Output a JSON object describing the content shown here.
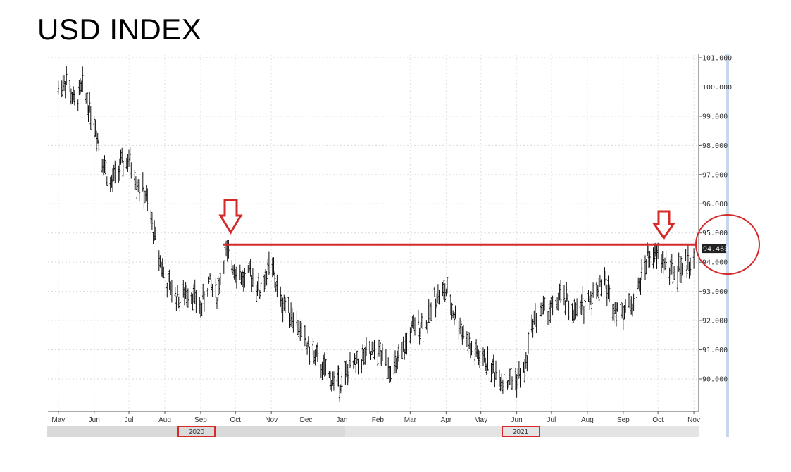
{
  "chart_data": {
    "type": "line",
    "title": "USD INDEX",
    "style": "ohlc-bars",
    "y_ticks": [
      "90.000",
      "91.000",
      "92.000",
      "93.000",
      "94.000",
      "95.000",
      "96.000",
      "97.000",
      "98.000",
      "99.000",
      "100.000",
      "101.000"
    ],
    "ylim": [
      89.0,
      101.2
    ],
    "x_month_labels": [
      "May",
      "Jun",
      "Jul",
      "Aug",
      "Sep",
      "Oct",
      "Nov",
      "Dec",
      "Jan",
      "Feb",
      "Mar",
      "Apr",
      "May",
      "Jun",
      "Jul",
      "Aug",
      "Sep",
      "Oct",
      "Nov"
    ],
    "x_year_labels": [
      "2020",
      "2021"
    ],
    "current_price_label": "94.460",
    "resistance_level": 94.6,
    "series": [
      {
        "x": [
          "2020-05-01",
          "2020-05-08",
          "2020-05-15",
          "2020-05-22",
          "2020-06-01",
          "2020-06-08",
          "2020-06-15",
          "2020-06-22",
          "2020-07-01",
          "2020-07-08",
          "2020-07-15",
          "2020-07-22",
          "2020-08-01",
          "2020-08-08",
          "2020-08-15",
          "2020-08-22",
          "2020-09-01",
          "2020-09-08",
          "2020-09-15",
          "2020-09-22",
          "2020-10-01",
          "2020-10-08",
          "2020-10-15",
          "2020-10-22",
          "2020-11-01",
          "2020-11-08",
          "2020-11-15",
          "2020-11-22",
          "2020-12-01",
          "2020-12-08",
          "2020-12-15",
          "2020-12-22",
          "2021-01-01",
          "2021-01-08",
          "2021-01-15",
          "2021-01-22",
          "2021-02-01",
          "2021-02-08",
          "2021-02-15",
          "2021-02-22",
          "2021-03-01",
          "2021-03-08",
          "2021-03-15",
          "2021-03-22",
          "2021-04-01",
          "2021-04-08",
          "2021-04-15",
          "2021-04-22",
          "2021-05-01",
          "2021-05-08",
          "2021-05-15",
          "2021-05-22",
          "2021-06-01",
          "2021-06-08",
          "2021-06-15",
          "2021-06-22",
          "2021-07-01",
          "2021-07-08",
          "2021-07-15",
          "2021-07-22",
          "2021-08-01",
          "2021-08-08",
          "2021-08-15",
          "2021-08-22",
          "2021-09-01",
          "2021-09-08",
          "2021-09-15",
          "2021-09-22",
          "2021-10-01",
          "2021-10-08",
          "2021-10-15",
          "2021-10-22",
          "2021-11-01"
        ],
        "values": [
          99.9,
          100.3,
          99.4,
          100.0,
          98.8,
          97.6,
          96.6,
          97.2,
          97.5,
          96.8,
          96.3,
          95.1,
          93.4,
          93.0,
          92.7,
          93.1,
          92.4,
          93.3,
          92.9,
          94.3,
          93.8,
          93.4,
          93.6,
          93.0,
          94.0,
          92.7,
          92.5,
          92.0,
          91.2,
          90.8,
          90.4,
          90.0,
          89.9,
          90.3,
          90.6,
          90.8,
          90.9,
          90.6,
          90.3,
          90.8,
          91.6,
          91.9,
          91.8,
          92.8,
          93.0,
          92.2,
          91.7,
          91.0,
          90.7,
          90.5,
          90.2,
          89.9,
          90.0,
          90.3,
          92.0,
          92.3,
          92.4,
          92.8,
          92.6,
          92.2,
          92.7,
          93.0,
          93.5,
          92.6,
          92.4,
          92.5,
          93.2,
          94.2,
          94.2,
          93.9,
          93.6,
          93.8,
          94.2
        ]
      }
    ]
  }
}
